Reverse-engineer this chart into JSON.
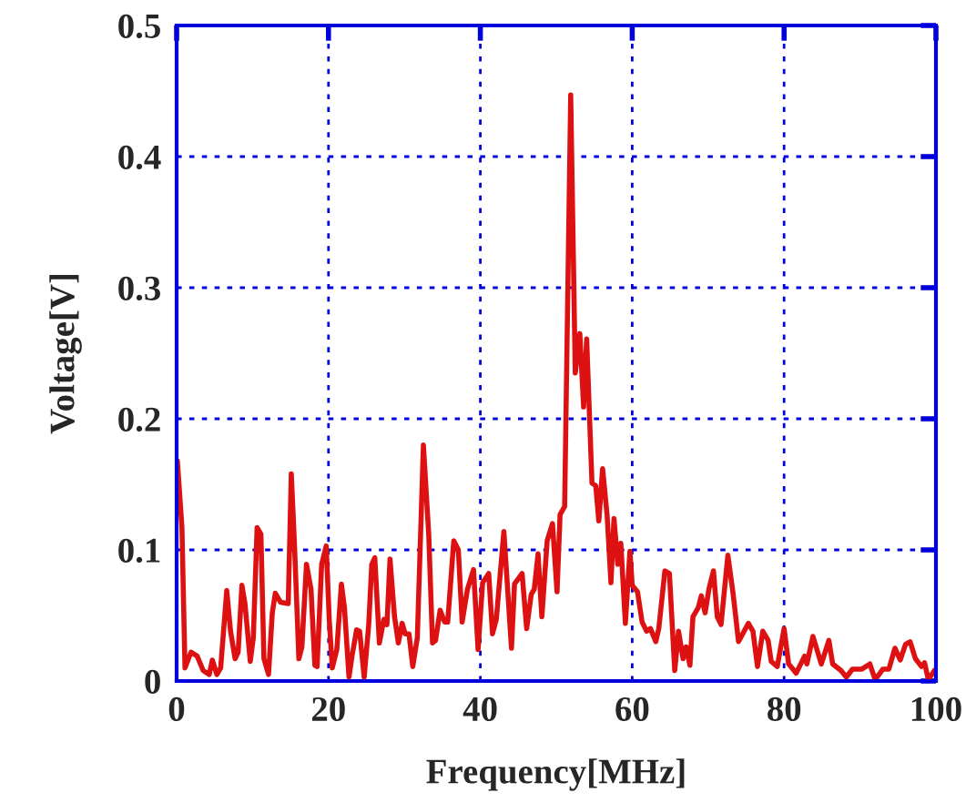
{
  "chart_data": {
    "type": "line",
    "xlabel": "Frequency[MHz]",
    "ylabel": "Voltage[V]",
    "xlim": [
      0,
      100
    ],
    "ylim": [
      0,
      0.5
    ],
    "xticks": [
      0,
      20,
      40,
      60,
      80,
      100
    ],
    "yticks": [
      0,
      0.1,
      0.2,
      0.3,
      0.4,
      0.5
    ],
    "grid": true,
    "series": [
      {
        "color": "#dd1111",
        "x": [
          0.1,
          0.7,
          1.1,
          1.9,
          2.7,
          3.5,
          4.3,
          4.7,
          5.3,
          5.8,
          6.6,
          7.1,
          7.7,
          8.1,
          8.6,
          9.0,
          9.7,
          10.1,
          10.6,
          11.1,
          11.5,
          12.1,
          12.6,
          13.0,
          13.7,
          14.7,
          15.1,
          15.5,
          16.1,
          16.5,
          17.1,
          17.7,
          18.2,
          18.5,
          19.1,
          19.7,
          20.1,
          20.5,
          21.1,
          21.7,
          22.1,
          22.7,
          23.1,
          23.7,
          24.1,
          24.7,
          25.3,
          25.7,
          26.1,
          26.7,
          27.3,
          27.7,
          28.1,
          28.7,
          29.2,
          29.7,
          30.1,
          30.6,
          31.1,
          31.7,
          32.5,
          33.2,
          33.7,
          34.1,
          34.7,
          35.3,
          35.7,
          36.5,
          37.1,
          37.6,
          38.3,
          39.1,
          39.7,
          40.3,
          41.1,
          41.6,
          42.1,
          43.1,
          44.1,
          44.5,
          45.5,
          46.1,
          46.7,
          47.1,
          47.6,
          48.1,
          48.8,
          49.5,
          50.1,
          50.5,
          51.1,
          51.9,
          52.5,
          53.1,
          53.6,
          54.0,
          54.7,
          55.2,
          55.6,
          56.1,
          56.7,
          57.2,
          57.6,
          58.1,
          58.5,
          59.1,
          59.7,
          60.0,
          60.7,
          61.3,
          61.9,
          62.4,
          63.1,
          63.5,
          64.3,
          64.9,
          65.6,
          66.1,
          66.7,
          67.1,
          67.6,
          68.0,
          68.7,
          69.1,
          69.6,
          70.1,
          70.7,
          71.2,
          71.7,
          72.6,
          73.3,
          74.0,
          75.3,
          75.9,
          76.5,
          77.2,
          77.9,
          78.3,
          79.1,
          80.0,
          80.6,
          81.6,
          82.7,
          83.0,
          83.8,
          84.9,
          85.9,
          86.4,
          87.5,
          88.2,
          89.0,
          90.2,
          91.3,
          92.0,
          93.0,
          93.8,
          94.6,
          95.3,
          96.0,
          96.6,
          97.3,
          98.1,
          98.5,
          99.0,
          99.8
        ],
        "values": [
          0.168,
          0.117,
          0.01,
          0.022,
          0.019,
          0.008,
          0.005,
          0.016,
          0.005,
          0.01,
          0.069,
          0.038,
          0.017,
          0.022,
          0.073,
          0.059,
          0.015,
          0.033,
          0.117,
          0.112,
          0.017,
          0.005,
          0.052,
          0.067,
          0.06,
          0.059,
          0.158,
          0.107,
          0.017,
          0.026,
          0.089,
          0.07,
          0.012,
          0.011,
          0.089,
          0.103,
          0.047,
          0.01,
          0.024,
          0.074,
          0.056,
          0.003,
          0.019,
          0.039,
          0.038,
          0.003,
          0.043,
          0.089,
          0.094,
          0.029,
          0.047,
          0.043,
          0.093,
          0.049,
          0.029,
          0.044,
          0.036,
          0.036,
          0.011,
          0.033,
          0.18,
          0.112,
          0.029,
          0.031,
          0.054,
          0.045,
          0.045,
          0.107,
          0.1,
          0.045,
          0.07,
          0.085,
          0.024,
          0.075,
          0.082,
          0.036,
          0.047,
          0.114,
          0.025,
          0.074,
          0.082,
          0.04,
          0.066,
          0.07,
          0.097,
          0.049,
          0.107,
          0.12,
          0.068,
          0.127,
          0.133,
          0.447,
          0.235,
          0.265,
          0.209,
          0.261,
          0.151,
          0.149,
          0.122,
          0.162,
          0.126,
          0.075,
          0.124,
          0.089,
          0.105,
          0.044,
          0.099,
          0.073,
          0.068,
          0.045,
          0.038,
          0.04,
          0.03,
          0.04,
          0.084,
          0.082,
          0.008,
          0.038,
          0.017,
          0.026,
          0.012,
          0.049,
          0.056,
          0.065,
          0.052,
          0.07,
          0.084,
          0.049,
          0.043,
          0.096,
          0.066,
          0.03,
          0.044,
          0.038,
          0.011,
          0.038,
          0.031,
          0.015,
          0.011,
          0.04,
          0.013,
          0.006,
          0.019,
          0.013,
          0.034,
          0.013,
          0.031,
          0.013,
          0.008,
          0.003,
          0.009,
          0.009,
          0.013,
          0.001,
          0.009,
          0.009,
          0.025,
          0.016,
          0.028,
          0.03,
          0.017,
          0.011,
          0.014,
          0.001,
          0.008
        ]
      }
    ]
  }
}
